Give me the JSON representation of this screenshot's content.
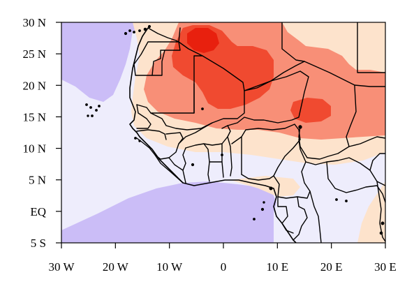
{
  "map": {
    "region": "West Africa",
    "projection": "equirectangular",
    "lon_range": [
      -30,
      30
    ],
    "lat_range": [
      -5,
      30
    ],
    "colors": {
      "strong_negative": "#cbbdf7",
      "weak_negative": "#eeedfc",
      "weak_positive": "#fde3cc",
      "moderate_positive": "#f88f77",
      "strong_positive": "#f04a30",
      "extreme_positive": "#e8200e",
      "border": "#000000"
    },
    "x_ticks": [
      {
        "value": -30,
        "label": "30 W"
      },
      {
        "value": -20,
        "label": "20 W"
      },
      {
        "value": -10,
        "label": "10 W"
      },
      {
        "value": 0,
        "label": "0"
      },
      {
        "value": 10,
        "label": "10 E"
      },
      {
        "value": 20,
        "label": "20 E"
      },
      {
        "value": 30,
        "label": "30 E"
      }
    ],
    "y_ticks": [
      {
        "value": 30,
        "label": "30 N"
      },
      {
        "value": 25,
        "label": "25 N"
      },
      {
        "value": 20,
        "label": "20 N"
      },
      {
        "value": 15,
        "label": "15 N"
      },
      {
        "value": 10,
        "label": "10 N"
      },
      {
        "value": 5,
        "label": "5 N"
      },
      {
        "value": 0,
        "label": "EQ"
      },
      {
        "value": -5,
        "label": "5 S"
      }
    ]
  }
}
